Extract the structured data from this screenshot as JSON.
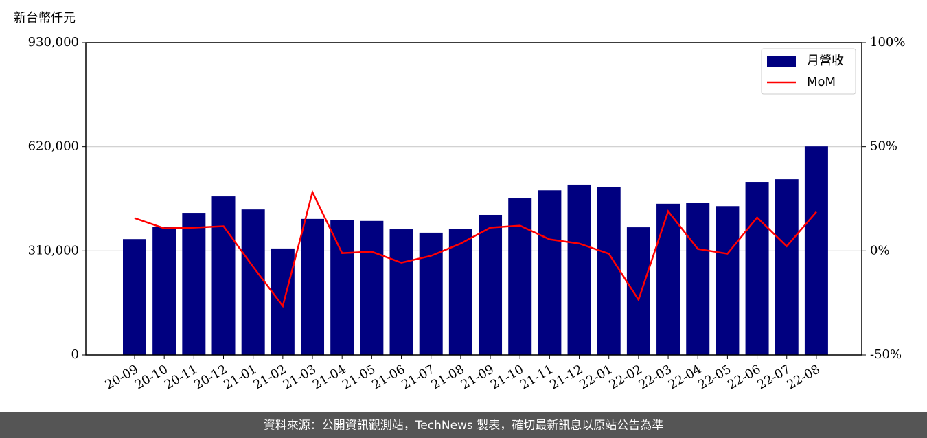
{
  "chart_data": {
    "type": "bar_line",
    "y_label": "新台幣仟元",
    "source": "資料來源：公開資訊觀測站，TechNews 製表，確切最新訊息以原站公告為準",
    "categories": [
      "20-09",
      "20-10",
      "20-11",
      "20-12",
      "21-01",
      "21-02",
      "21-03",
      "21-04",
      "21-05",
      "21-06",
      "21-07",
      "21-08",
      "21-09",
      "21-10",
      "21-11",
      "21-12",
      "22-01",
      "22-02",
      "22-03",
      "22-04",
      "22-05",
      "22-06",
      "22-07",
      "22-08"
    ],
    "series": [
      {
        "name": "月營收",
        "type": "bar",
        "color": "#000080",
        "values": [
          345000,
          382000,
          423000,
          472000,
          433000,
          317000,
          405000,
          401000,
          399000,
          374000,
          364000,
          376000,
          417000,
          466000,
          490000,
          507000,
          499000,
          380000,
          450000,
          452000,
          443000,
          515000,
          523000,
          621000
        ]
      },
      {
        "name": "MoM",
        "type": "line",
        "axis": "y2",
        "color": "#ff0000",
        "values": [
          15.7,
          10.8,
          11.1,
          11.8,
          -7.7,
          -26.5,
          28.2,
          -1.1,
          -0.4,
          -5.7,
          -2.4,
          3.5,
          11.1,
          12.1,
          5.5,
          3.5,
          -1.4,
          -23.5,
          19.0,
          0.9,
          -1.4,
          16.0,
          2.2,
          18.7
        ]
      }
    ],
    "ylim": [
      0,
      930000
    ],
    "yticks": [
      0,
      {
        "value": 310000,
        "label": "310,000"
      },
      {
        "value": 620000,
        "label": "620,000"
      },
      {
        "value": 930000,
        "label": "930,000"
      }
    ],
    "y2lim": [
      -50,
      100
    ],
    "y2ticks": [
      {
        "value": -50,
        "label": "-50%"
      },
      {
        "value": 0,
        "label": "0%"
      },
      {
        "value": 50,
        "label": "50%"
      },
      {
        "value": 100,
        "label": "100%"
      }
    ],
    "grid": true,
    "legend": "upper-right"
  }
}
